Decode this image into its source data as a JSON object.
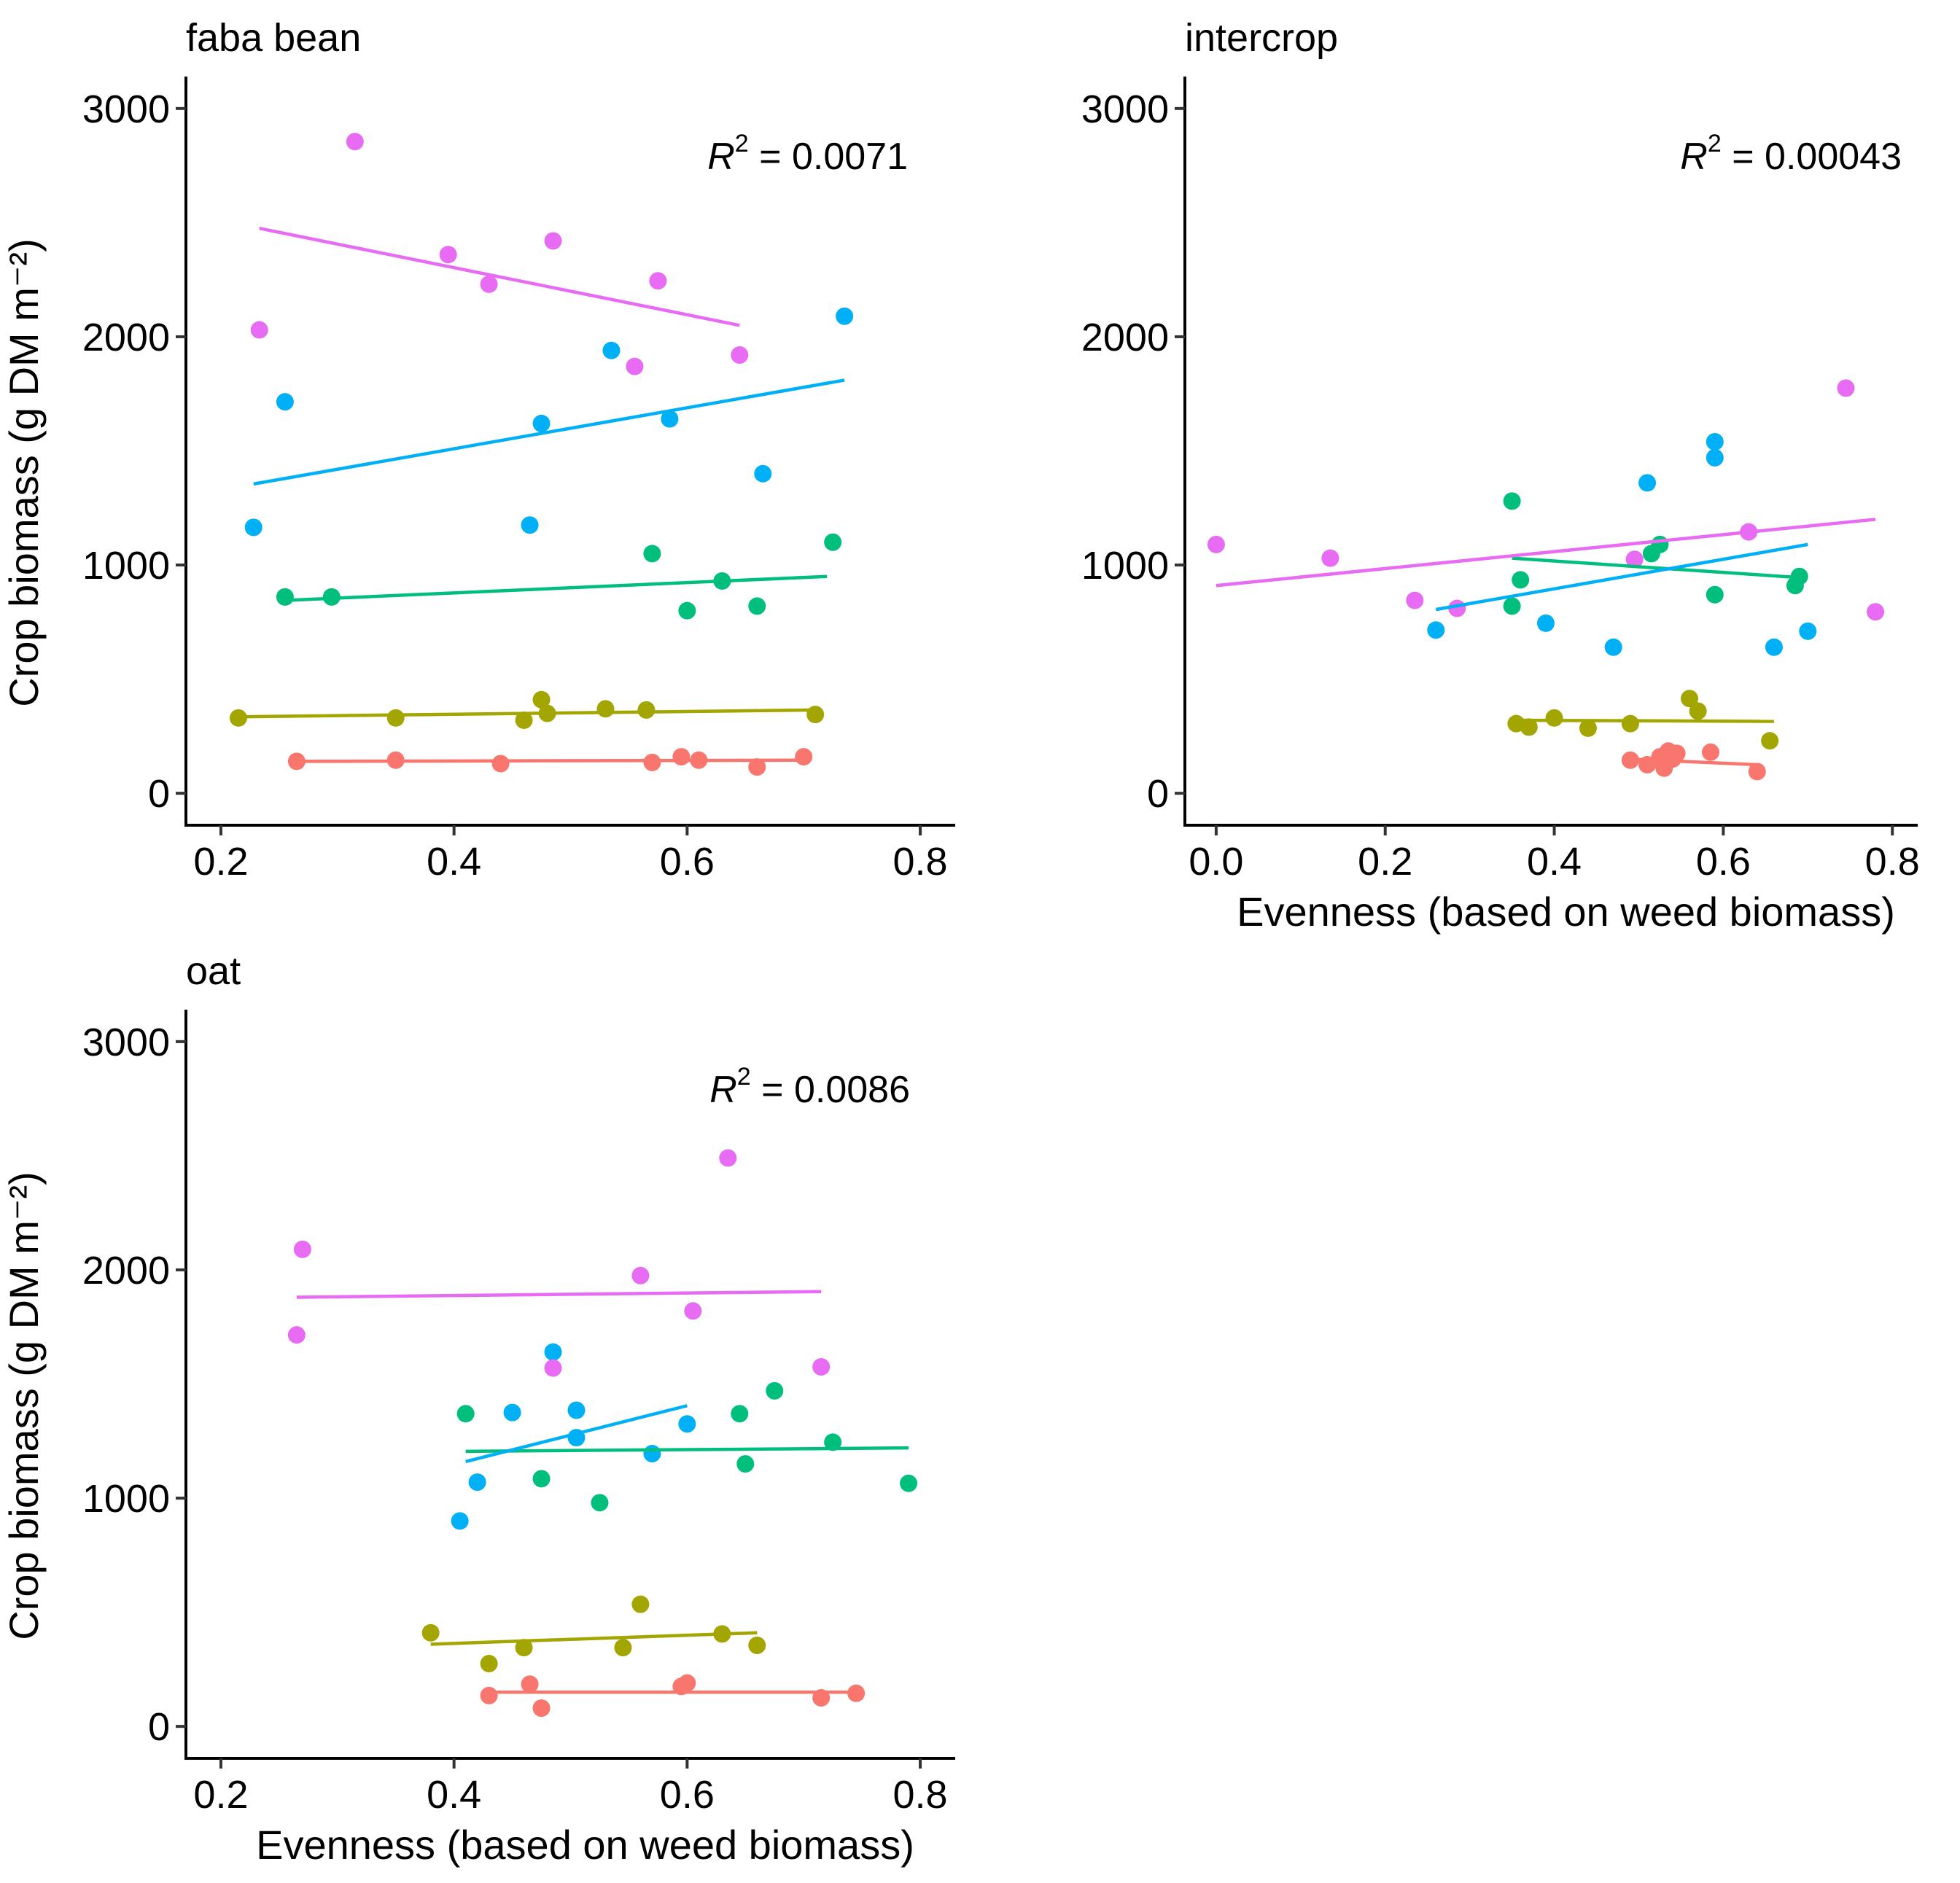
{
  "chart_data": [
    {
      "type": "scatter",
      "title": "faba bean",
      "xlabel": "",
      "ylabel": "Crop biomass (g DM m⁻²)",
      "xlim": [
        0.17,
        0.83
      ],
      "ylim": [
        -140,
        3140
      ],
      "xticks": [
        {
          "value": 0.2,
          "label": "0.2"
        },
        {
          "value": 0.4,
          "label": "0.4"
        },
        {
          "value": 0.6,
          "label": "0.6"
        },
        {
          "value": 0.8,
          "label": "0.8"
        }
      ],
      "yticks": [
        {
          "value": 0,
          "label": "0"
        },
        {
          "value": 1000,
          "label": "1000"
        },
        {
          "value": 2000,
          "label": "2000"
        },
        {
          "value": 3000,
          "label": "3000"
        }
      ],
      "r2": {
        "prefix": "R",
        "sup": "2",
        "value": " = 0.0071"
      },
      "series": [
        {
          "color": "#F8766D",
          "points": [
            [
              0.265,
              140
            ],
            [
              0.35,
              145
            ],
            [
              0.44,
              130
            ],
            [
              0.57,
              135
            ],
            [
              0.595,
              160
            ],
            [
              0.61,
              145
            ],
            [
              0.66,
              115
            ],
            [
              0.7,
              160
            ]
          ],
          "fit": [
            [
              0.265,
              140
            ],
            [
              0.7,
              145
            ]
          ]
        },
        {
          "color": "#A3A500",
          "points": [
            [
              0.215,
              330
            ],
            [
              0.35,
              330
            ],
            [
              0.46,
              320
            ],
            [
              0.475,
              410
            ],
            [
              0.48,
              350
            ],
            [
              0.53,
              370
            ],
            [
              0.565,
              365
            ],
            [
              0.71,
              345
            ]
          ],
          "fit": [
            [
              0.215,
              335
            ],
            [
              0.71,
              365
            ]
          ]
        },
        {
          "color": "#00BF7D",
          "points": [
            [
              0.255,
              860
            ],
            [
              0.295,
              860
            ],
            [
              0.57,
              1050
            ],
            [
              0.6,
              800
            ],
            [
              0.63,
              930
            ],
            [
              0.66,
              820
            ],
            [
              0.725,
              1100
            ]
          ],
          "fit": [
            [
              0.255,
              845
            ],
            [
              0.72,
              950
            ]
          ]
        },
        {
          "color": "#00B0F6",
          "points": [
            [
              0.228,
              1165
            ],
            [
              0.255,
              1715
            ],
            [
              0.465,
              1175
            ],
            [
              0.475,
              1620
            ],
            [
              0.535,
              1940
            ],
            [
              0.585,
              1640
            ],
            [
              0.665,
              1400
            ],
            [
              0.735,
              2090
            ]
          ],
          "fit": [
            [
              0.228,
              1355
            ],
            [
              0.735,
              1810
            ]
          ]
        },
        {
          "color": "#E76BF3",
          "points": [
            [
              0.233,
              2030
            ],
            [
              0.315,
              2855
            ],
            [
              0.395,
              2360
            ],
            [
              0.43,
              2230
            ],
            [
              0.485,
              2420
            ],
            [
              0.555,
              1870
            ],
            [
              0.575,
              2245
            ],
            [
              0.645,
              1920
            ]
          ],
          "fit": [
            [
              0.233,
              2475
            ],
            [
              0.645,
              2050
            ]
          ]
        }
      ]
    },
    {
      "type": "scatter",
      "title": "intercrop",
      "xlabel": "Evenness (based on weed biomass)",
      "ylabel": "",
      "xlim": [
        -0.037,
        0.83
      ],
      "ylim": [
        -140,
        3140
      ],
      "xticks": [
        {
          "value": 0.0,
          "label": "0.0"
        },
        {
          "value": 0.2,
          "label": "0.2"
        },
        {
          "value": 0.4,
          "label": "0.4"
        },
        {
          "value": 0.6,
          "label": "0.6"
        },
        {
          "value": 0.8,
          "label": "0.8"
        }
      ],
      "yticks": [
        {
          "value": 0,
          "label": "0"
        },
        {
          "value": 1000,
          "label": "1000"
        },
        {
          "value": 2000,
          "label": "2000"
        },
        {
          "value": 3000,
          "label": "3000"
        }
      ],
      "r2": {
        "prefix": "R",
        "sup": "2",
        "value": " = 0.00043"
      },
      "series": [
        {
          "color": "#F8766D",
          "points": [
            [
              0.49,
              145
            ],
            [
              0.51,
              125
            ],
            [
              0.525,
              160
            ],
            [
              0.53,
              110
            ],
            [
              0.535,
              185
            ],
            [
              0.54,
              150
            ],
            [
              0.545,
              175
            ],
            [
              0.585,
              180
            ],
            [
              0.64,
              95
            ]
          ],
          "fit": [
            [
              0.49,
              150
            ],
            [
              0.64,
              125
            ]
          ]
        },
        {
          "color": "#A3A500",
          "points": [
            [
              0.355,
              305
            ],
            [
              0.37,
              290
            ],
            [
              0.4,
              330
            ],
            [
              0.44,
              285
            ],
            [
              0.49,
              305
            ],
            [
              0.56,
              415
            ],
            [
              0.57,
              360
            ],
            [
              0.655,
              230
            ]
          ],
          "fit": [
            [
              0.355,
              320
            ],
            [
              0.66,
              315
            ]
          ]
        },
        {
          "color": "#00BF7D",
          "points": [
            [
              0.35,
              1280
            ],
            [
              0.35,
              820
            ],
            [
              0.36,
              935
            ],
            [
              0.515,
              1050
            ],
            [
              0.525,
              1090
            ],
            [
              0.59,
              870
            ],
            [
              0.685,
              910
            ],
            [
              0.69,
              950
            ]
          ],
          "fit": [
            [
              0.35,
              1030
            ],
            [
              0.69,
              945
            ]
          ]
        },
        {
          "color": "#00B0F6",
          "points": [
            [
              0.26,
              715
            ],
            [
              0.39,
              745
            ],
            [
              0.47,
              640
            ],
            [
              0.51,
              1360
            ],
            [
              0.59,
              1540
            ],
            [
              0.59,
              1470
            ],
            [
              0.66,
              640
            ],
            [
              0.7,
              710
            ]
          ],
          "fit": [
            [
              0.26,
              805
            ],
            [
              0.7,
              1090
            ]
          ]
        },
        {
          "color": "#E76BF3",
          "points": [
            [
              0.0,
              1090
            ],
            [
              0.135,
              1030
            ],
            [
              0.235,
              845
            ],
            [
              0.285,
              810
            ],
            [
              0.495,
              1025
            ],
            [
              0.63,
              1145
            ],
            [
              0.745,
              1775
            ],
            [
              0.78,
              795
            ]
          ],
          "fit": [
            [
              0.0,
              910
            ],
            [
              0.78,
              1200
            ]
          ]
        }
      ]
    },
    {
      "type": "scatter",
      "title": "oat",
      "xlabel": "Evenness (based on weed biomass)",
      "ylabel": "Crop biomass (g DM m⁻²)",
      "xlim": [
        0.17,
        0.83
      ],
      "ylim": [
        -140,
        3140
      ],
      "xticks": [
        {
          "value": 0.2,
          "label": "0.2"
        },
        {
          "value": 0.4,
          "label": "0.4"
        },
        {
          "value": 0.6,
          "label": "0.6"
        },
        {
          "value": 0.8,
          "label": "0.8"
        }
      ],
      "yticks": [
        {
          "value": 0,
          "label": "0"
        },
        {
          "value": 1000,
          "label": "1000"
        },
        {
          "value": 2000,
          "label": "2000"
        },
        {
          "value": 3000,
          "label": "3000"
        }
      ],
      "r2": {
        "prefix": "R",
        "sup": "2",
        "value": " = 0.0086"
      },
      "series": [
        {
          "color": "#F8766D",
          "points": [
            [
              0.43,
              135
            ],
            [
              0.465,
              185
            ],
            [
              0.475,
              80
            ],
            [
              0.595,
              175
            ],
            [
              0.6,
              190
            ],
            [
              0.715,
              125
            ],
            [
              0.745,
              145
            ]
          ],
          "fit": [
            [
              0.43,
              150
            ],
            [
              0.745,
              150
            ]
          ]
        },
        {
          "color": "#A3A500",
          "points": [
            [
              0.38,
              410
            ],
            [
              0.43,
              275
            ],
            [
              0.46,
              345
            ],
            [
              0.545,
              345
            ],
            [
              0.56,
              535
            ],
            [
              0.63,
              405
            ],
            [
              0.66,
              355
            ]
          ],
          "fit": [
            [
              0.38,
              360
            ],
            [
              0.66,
              410
            ]
          ]
        },
        {
          "color": "#00BF7D",
          "points": [
            [
              0.41,
              1370
            ],
            [
              0.475,
              1085
            ],
            [
              0.525,
              980
            ],
            [
              0.645,
              1370
            ],
            [
              0.65,
              1150
            ],
            [
              0.675,
              1470
            ],
            [
              0.725,
              1245
            ],
            [
              0.79,
              1065
            ]
          ],
          "fit": [
            [
              0.41,
              1205
            ],
            [
              0.79,
              1220
            ]
          ]
        },
        {
          "color": "#00B0F6",
          "points": [
            [
              0.405,
              900
            ],
            [
              0.42,
              1070
            ],
            [
              0.45,
              1375
            ],
            [
              0.485,
              1640
            ],
            [
              0.505,
              1385
            ],
            [
              0.505,
              1265
            ],
            [
              0.57,
              1195
            ],
            [
              0.6,
              1325
            ]
          ],
          "fit": [
            [
              0.41,
              1160
            ],
            [
              0.6,
              1405
            ]
          ]
        },
        {
          "color": "#E76BF3",
          "points": [
            [
              0.265,
              1715
            ],
            [
              0.27,
              2090
            ],
            [
              0.485,
              1570
            ],
            [
              0.56,
              1975
            ],
            [
              0.605,
              1820
            ],
            [
              0.635,
              2490
            ],
            [
              0.715,
              1575
            ]
          ],
          "fit": [
            [
              0.265,
              1880
            ],
            [
              0.715,
              1905
            ]
          ]
        }
      ]
    }
  ]
}
